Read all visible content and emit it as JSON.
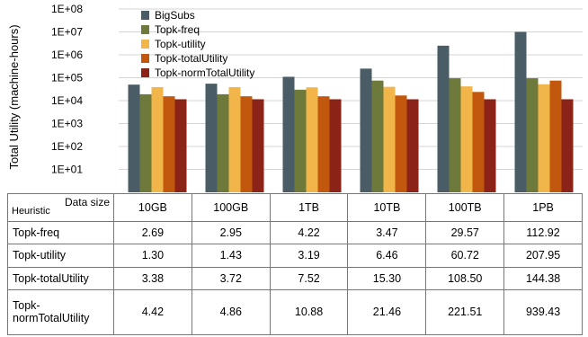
{
  "chart_data": {
    "type": "bar",
    "ylabel": "Total Utility (machine-hours)",
    "yscale": "log",
    "ylim": [
      1,
      100000000
    ],
    "yticks": [
      "1E+01",
      "1E+02",
      "1E+03",
      "1E+04",
      "1E+05",
      "1E+06",
      "1E+07",
      "1E+08"
    ],
    "grid": true,
    "legend_position": "top-left",
    "categories": [
      "10GB",
      "100GB",
      "1TB",
      "10TB",
      "100TB",
      "1PB"
    ],
    "series": [
      {
        "name": "BigSubs",
        "color": "#4a5c66",
        "values": [
          50000,
          55000,
          110000,
          250000,
          2500000,
          10000000
        ]
      },
      {
        "name": "Topk-freq",
        "color": "#6e7a3c",
        "values": [
          19000,
          19000,
          30000,
          75000,
          95000,
          95000
        ]
      },
      {
        "name": "Topk-utility",
        "color": "#f2b54a",
        "values": [
          39000,
          39000,
          38000,
          40000,
          42000,
          52000
        ]
      },
      {
        "name": "Topk-totalUtility",
        "color": "#c2580e",
        "values": [
          15500,
          15500,
          15500,
          16800,
          24000,
          75000
        ]
      },
      {
        "name": "Topk-normTotalUtility",
        "color": "#8b2318",
        "values": [
          11500,
          11500,
          11500,
          11500,
          11500,
          11500
        ]
      }
    ]
  },
  "table": {
    "corner_top": "Data size",
    "corner_bottom": "Heuristic",
    "columns": [
      "10GB",
      "100GB",
      "1TB",
      "10TB",
      "100TB",
      "1PB"
    ],
    "rows": [
      {
        "label": "Topk-freq",
        "values": [
          "2.69",
          "2.95",
          "4.22",
          "3.47",
          "29.57",
          "112.92"
        ]
      },
      {
        "label": "Topk-utility",
        "values": [
          "1.30",
          "1.43",
          "3.19",
          "6.46",
          "60.72",
          "207.95"
        ]
      },
      {
        "label": "Topk-totalUtility",
        "values": [
          "3.38",
          "3.72",
          "7.52",
          "15.30",
          "108.50",
          "144.38"
        ]
      },
      {
        "label": "Topk-normTotalUtility",
        "label_line1": "Topk-",
        "label_line2": "normTotalUtility",
        "values": [
          "4.42",
          "4.86",
          "10.88",
          "21.46",
          "221.51",
          "939.43"
        ]
      }
    ]
  }
}
